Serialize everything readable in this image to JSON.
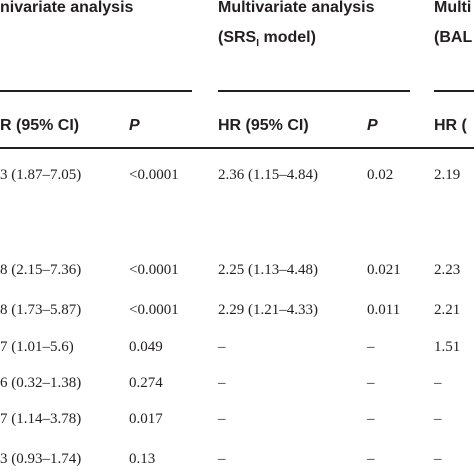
{
  "table": {
    "group_headers": {
      "univariate": "nivariate analysis",
      "srs": "Multivariate analysis",
      "srs_model_pre": "(SRS",
      "srs_model_sub": "I",
      "srs_model_post": " model)",
      "bal": "Multi",
      "bal_model": "(BAL"
    },
    "column_headers": {
      "uni_hr": "R (95% CI)",
      "uni_p": "P",
      "srs_hr": "HR (95% CI)",
      "srs_p": "P",
      "bal_hr": "HR ("
    },
    "rows": [
      {
        "uni_hr": "3 (1.87–7.05)",
        "uni_p": "<0.0001",
        "srs_hr": "2.36 (1.15–4.84)",
        "srs_p": "0.02",
        "bal_hr": "2.19"
      },
      {
        "uni_hr": "8 (2.15–7.36)",
        "uni_p": "<0.0001",
        "srs_hr": "2.25 (1.13–4.48)",
        "srs_p": "0.021",
        "bal_hr": "2.23"
      },
      {
        "uni_hr": "8 (1.73–5.87)",
        "uni_p": "<0.0001",
        "srs_hr": "2.29 (1.21–4.33)",
        "srs_p": "0.011",
        "bal_hr": "2.21"
      },
      {
        "uni_hr": "7 (1.01–5.6)",
        "uni_p": "0.049",
        "srs_hr": "–",
        "srs_p": "–",
        "bal_hr": "1.51"
      },
      {
        "uni_hr": "6 (0.32–1.38)",
        "uni_p": "0.274",
        "srs_hr": "–",
        "srs_p": "–",
        "bal_hr": "–"
      },
      {
        "uni_hr": "7 (1.14–3.78)",
        "uni_p": "0.017",
        "srs_hr": "–",
        "srs_p": "–",
        "bal_hr": "–"
      },
      {
        "uni_hr": "3 (0.93–1.74)",
        "uni_p": "0.13",
        "srs_hr": "–",
        "srs_p": "–",
        "bal_hr": "–"
      }
    ]
  }
}
